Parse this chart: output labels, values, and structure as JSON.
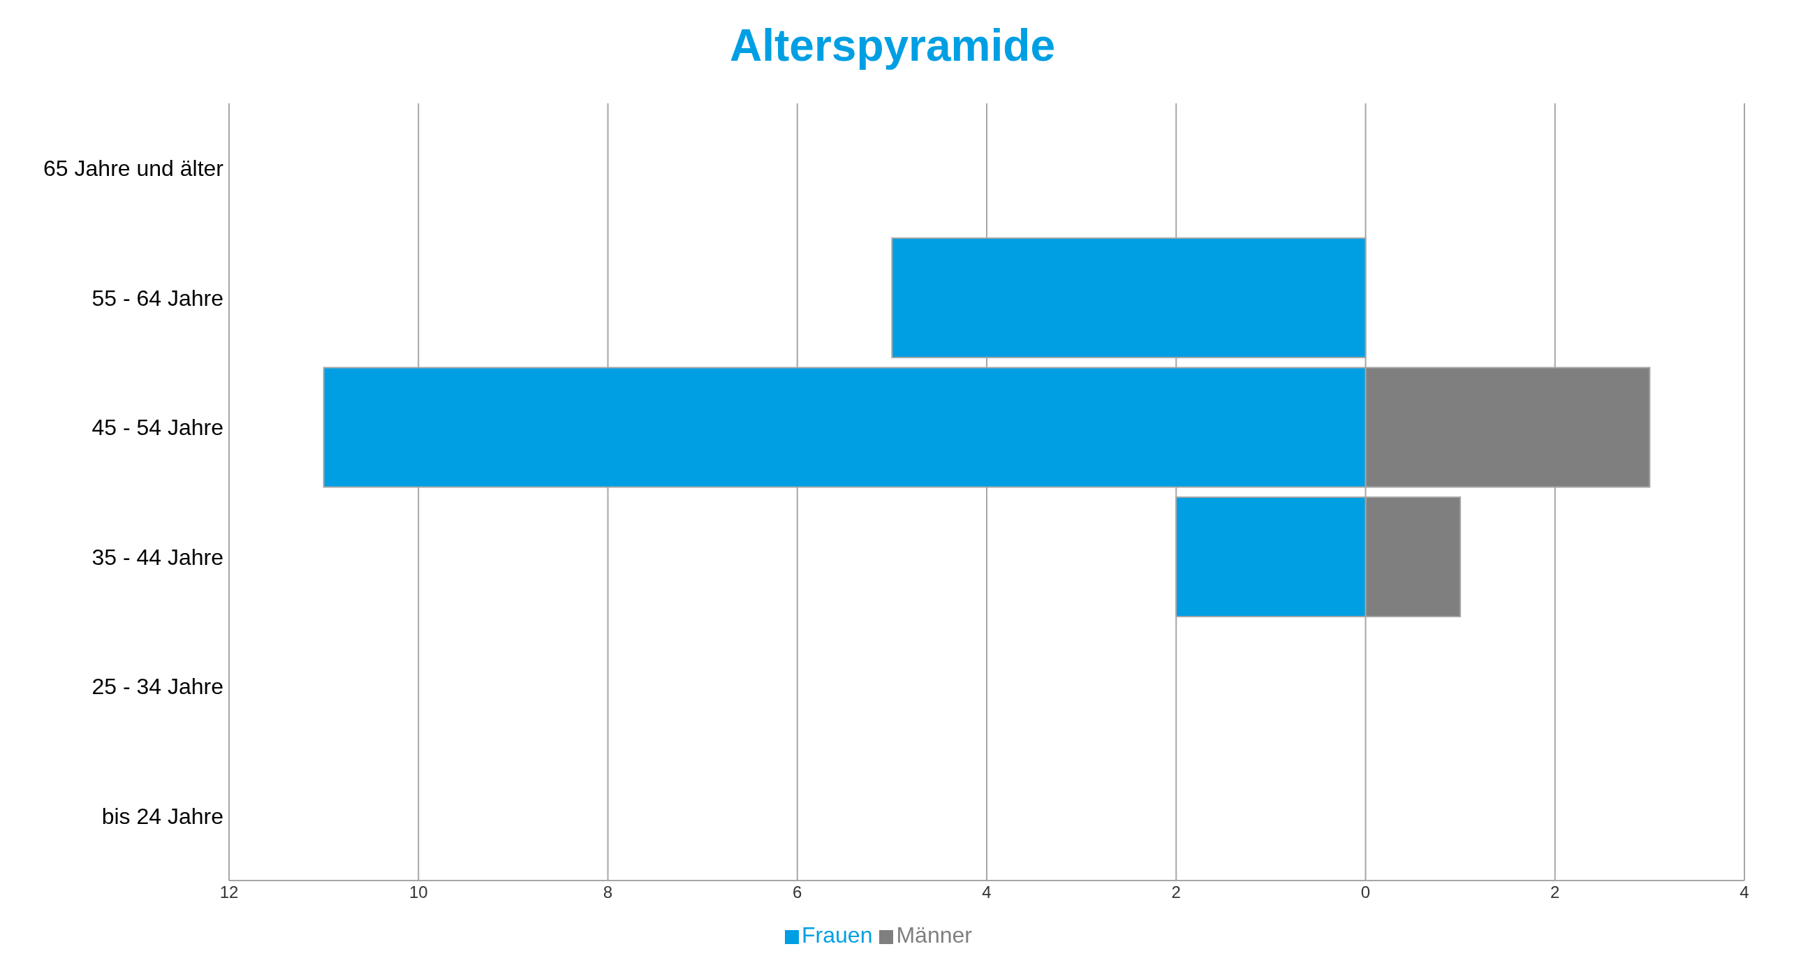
{
  "chart_data": {
    "type": "bar",
    "title": "Alterspyramide",
    "orientation": "horizontal",
    "stacked": true,
    "categories": [
      "65 Jahre und älter",
      "55 - 64 Jahre",
      "45 - 54 Jahre",
      "35 - 44 Jahre",
      "25 - 34 Jahre",
      "bis 24 Jahre"
    ],
    "series": [
      {
        "name": "Männer",
        "color": "#7f7f7f",
        "values": [
          0,
          0,
          3,
          1,
          0,
          0
        ]
      },
      {
        "name": "Frauen",
        "color": "#009fe3",
        "values": [
          0,
          -5,
          -11,
          -2,
          0,
          0
        ]
      }
    ],
    "xlim": [
      -12,
      4
    ],
    "xticks": [
      {
        "value": -12,
        "label": "12"
      },
      {
        "value": -10,
        "label": "10"
      },
      {
        "value": -8,
        "label": "8"
      },
      {
        "value": -6,
        "label": "6"
      },
      {
        "value": -4,
        "label": "4"
      },
      {
        "value": -2,
        "label": "2"
      },
      0,
      2,
      4
    ],
    "grid": "x",
    "legend": "bottom"
  }
}
